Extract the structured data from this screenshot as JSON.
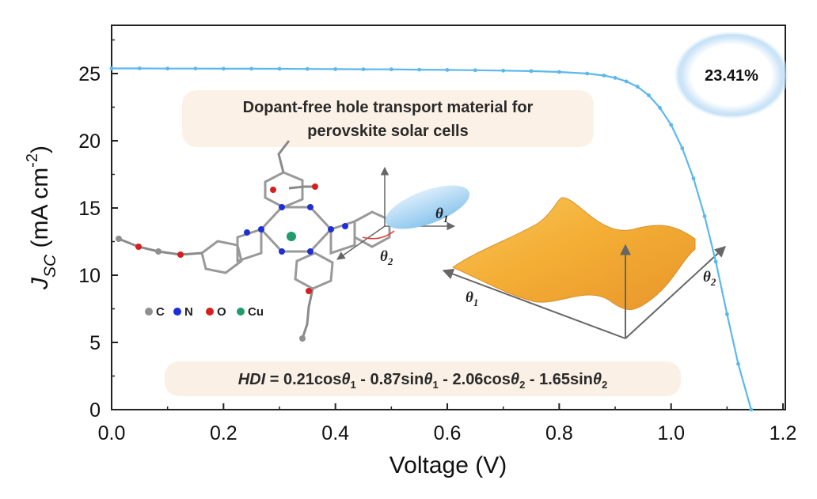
{
  "chart_data": {
    "type": "line",
    "xlabel": "Voltage (V)",
    "ylabel": {
      "main": "J",
      "sub": "SC",
      "units": " (mA cm",
      "exp": "-2",
      "close": ")"
    },
    "xlim": [
      0.0,
      1.2
    ],
    "ylim": [
      0,
      28
    ],
    "x_ticks": [
      "0.0",
      "0.2",
      "0.4",
      "0.6",
      "0.8",
      "1.0",
      "1.2"
    ],
    "y_ticks": [
      "0",
      "5",
      "10",
      "15",
      "20",
      "25"
    ],
    "series": [
      {
        "name": "J-V curve",
        "color": "#5bb8ec",
        "points": [
          [
            0.0,
            25.38
          ],
          [
            0.05,
            25.38
          ],
          [
            0.1,
            25.37
          ],
          [
            0.15,
            25.37
          ],
          [
            0.2,
            25.36
          ],
          [
            0.25,
            25.36
          ],
          [
            0.3,
            25.35
          ],
          [
            0.35,
            25.34
          ],
          [
            0.4,
            25.33
          ],
          [
            0.45,
            25.32
          ],
          [
            0.5,
            25.31
          ],
          [
            0.55,
            25.29
          ],
          [
            0.6,
            25.27
          ],
          [
            0.65,
            25.25
          ],
          [
            0.7,
            25.22
          ],
          [
            0.75,
            25.18
          ],
          [
            0.8,
            25.12
          ],
          [
            0.85,
            25.0
          ],
          [
            0.88,
            24.85
          ],
          [
            0.9,
            24.68
          ],
          [
            0.92,
            24.42
          ],
          [
            0.94,
            24.02
          ],
          [
            0.96,
            23.38
          ],
          [
            0.98,
            22.45
          ],
          [
            1.0,
            21.18
          ],
          [
            1.02,
            19.45
          ],
          [
            1.04,
            17.2
          ],
          [
            1.06,
            14.38
          ],
          [
            1.08,
            11.0
          ],
          [
            1.1,
            7.1
          ],
          [
            1.12,
            3.4
          ],
          [
            1.143,
            0.0
          ]
        ]
      }
    ],
    "efficiency_label": "23.41%",
    "annotation_title": [
      "Dopant-free hole transport material for",
      "perovskite solar cells"
    ],
    "equation": {
      "lhs": "HDI",
      "t1": " = 0.21cos",
      "t2": " - 0.87sin",
      "t3": " - 2.06cos",
      "t4": " - 1.65sin",
      "theta": "θ",
      "sub1": "1",
      "sub2": "2"
    },
    "atom_legend": [
      {
        "label": "C",
        "color": "#8f8f8f"
      },
      {
        "label": "N",
        "color": "#1f2fd6"
      },
      {
        "label": "O",
        "color": "#d81e1e"
      },
      {
        "label": "Cu",
        "color": "#1f9c6a"
      }
    ],
    "angle_labels": {
      "theta": "θ",
      "sub1": "1",
      "sub2": "2"
    },
    "colors": {
      "curve": "#5bb8ec",
      "label_bg": "#fbeee2",
      "surface": "#f2b23c",
      "bubble": "#cfe6f8"
    }
  }
}
